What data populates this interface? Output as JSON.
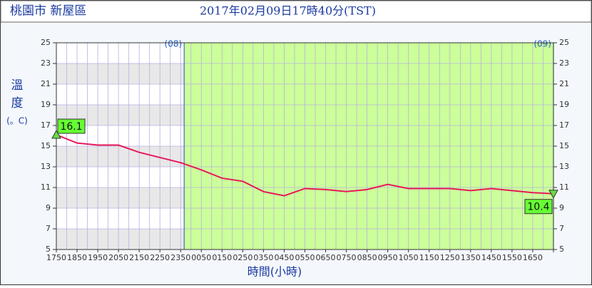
{
  "chart_data": {
    "type": "line",
    "location": "桃園市 新屋區",
    "title": "2017年02月09日17時40分(TST)",
    "ylabel_lines": [
      "溫",
      "度",
      "(。C)"
    ],
    "xlabel": "時間(小時)",
    "day_markers": [
      {
        "label": "(08)",
        "index": 6.17
      },
      {
        "label": "(09)",
        "index": 24
      }
    ],
    "categories": [
      "1750",
      "1850",
      "1950",
      "2050",
      "2150",
      "2250",
      "2350",
      "0050",
      "0150",
      "0250",
      "0350",
      "0450",
      "0550",
      "0650",
      "0750",
      "0850",
      "0950",
      "1050",
      "1150",
      "1250",
      "1350",
      "1450",
      "1550",
      "1650",
      null
    ],
    "series": [
      {
        "name": "溫度",
        "color": "#e8185a",
        "values": [
          16.1,
          15.3,
          15.1,
          15.1,
          14.4,
          13.9,
          13.4,
          12.7,
          11.9,
          11.6,
          10.6,
          10.2,
          10.9,
          10.8,
          10.6,
          10.8,
          11.3,
          10.9,
          10.9,
          10.9,
          10.7,
          10.9,
          10.7,
          10.5,
          10.4
        ],
        "value_labels": [
          "16.1",
          null,
          null,
          null,
          null,
          null,
          null,
          null,
          null,
          null,
          null,
          null,
          null,
          null,
          null,
          null,
          null,
          null,
          null,
          null,
          null,
          null,
          null,
          null,
          "10.4"
        ]
      }
    ],
    "ylim": [
      5,
      25
    ],
    "yticks": [
      5,
      7,
      9,
      11,
      13,
      15,
      17,
      19,
      21,
      23,
      25
    ],
    "highlight_color": "#ccff99",
    "band_color": "#e8e8e8",
    "grid_color": "#b8b0e0"
  }
}
